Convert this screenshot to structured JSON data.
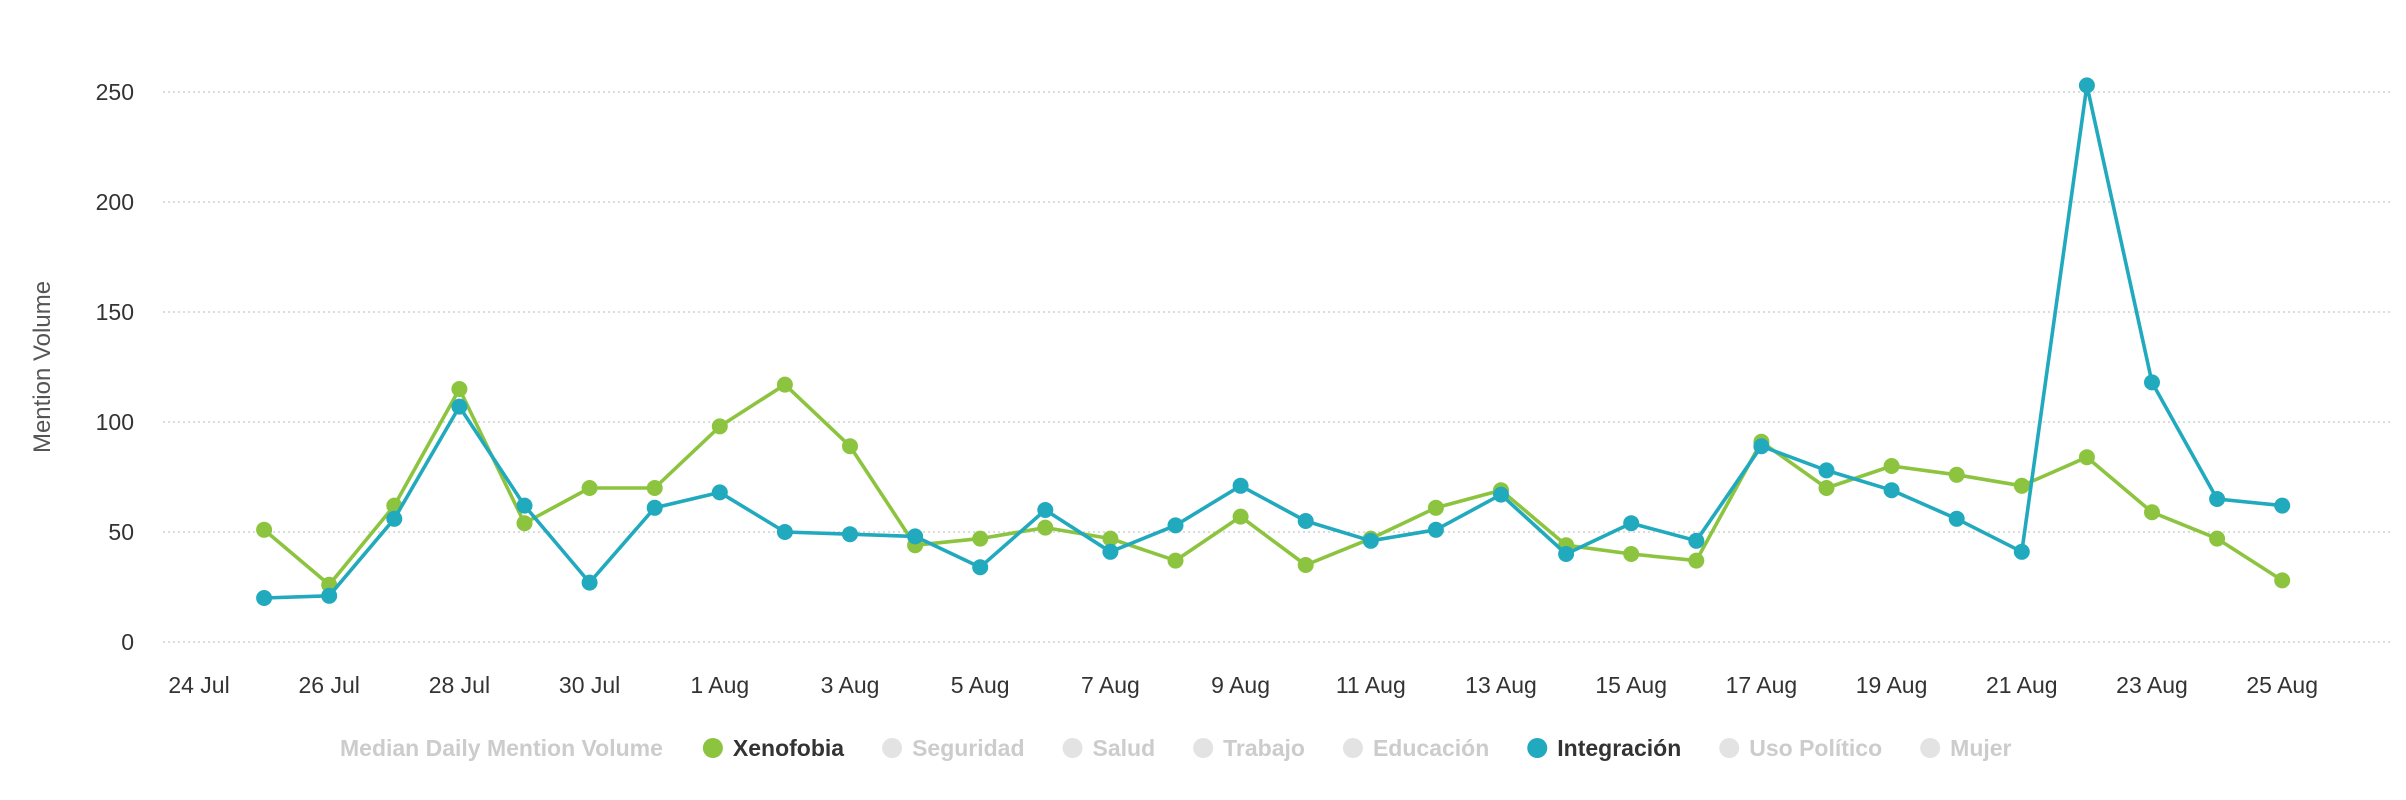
{
  "chart_data": {
    "type": "line",
    "ylabel": "Mention Volume",
    "xlabel": "",
    "ylim": [
      0,
      250
    ],
    "yticks": [
      0,
      50,
      100,
      150,
      200,
      250
    ],
    "x_tick_labels": [
      "24 Jul",
      "26 Jul",
      "28 Jul",
      "30 Jul",
      "1 Aug",
      "3 Aug",
      "5 Aug",
      "7 Aug",
      "9 Aug",
      "11 Aug",
      "13 Aug",
      "15 Aug",
      "17 Aug",
      "19 Aug",
      "21 Aug",
      "23 Aug",
      "25 Aug"
    ],
    "x": [
      "25 Jul",
      "26 Jul",
      "27 Jul",
      "28 Jul",
      "29 Jul",
      "30 Jul",
      "31 Jul",
      "1 Aug",
      "2 Aug",
      "3 Aug",
      "4 Aug",
      "5 Aug",
      "6 Aug",
      "7 Aug",
      "8 Aug",
      "9 Aug",
      "10 Aug",
      "11 Aug",
      "12 Aug",
      "13 Aug",
      "14 Aug",
      "15 Aug",
      "16 Aug",
      "17 Aug",
      "18 Aug",
      "19 Aug",
      "20 Aug",
      "21 Aug",
      "22 Aug",
      "23 Aug",
      "24 Aug",
      "25 Aug"
    ],
    "series": [
      {
        "name": "Xenofobia",
        "color": "#8cc43f",
        "values": [
          51,
          26,
          62,
          115,
          54,
          70,
          70,
          98,
          117,
          89,
          44,
          47,
          52,
          47,
          37,
          57,
          35,
          47,
          61,
          69,
          44,
          40,
          37,
          91,
          70,
          80,
          76,
          71,
          84,
          59,
          47,
          28
        ]
      },
      {
        "name": "Integración",
        "color": "#21a9bd",
        "values": [
          20,
          21,
          56,
          107,
          62,
          27,
          61,
          68,
          50,
          49,
          48,
          34,
          60,
          41,
          53,
          71,
          55,
          46,
          51,
          67,
          40,
          54,
          46,
          89,
          78,
          69,
          56,
          41,
          253,
          118,
          65,
          62
        ]
      }
    ],
    "grid": true,
    "legend": {
      "placement": "bottom",
      "title": "Median Daily Mention Volume",
      "inactive_color": "#cccccc",
      "inactive_marker_color": "#e3e3e3",
      "items": [
        {
          "label": "Xenofobia",
          "active": true,
          "color": "#8cc43f"
        },
        {
          "label": "Seguridad",
          "active": false
        },
        {
          "label": "Salud",
          "active": false
        },
        {
          "label": "Trabajo",
          "active": false
        },
        {
          "label": "Educación",
          "active": false
        },
        {
          "label": "Integración",
          "active": true,
          "color": "#21a9bd"
        },
        {
          "label": "Uso Político",
          "active": false
        },
        {
          "label": "Mujer",
          "active": false
        }
      ]
    }
  }
}
